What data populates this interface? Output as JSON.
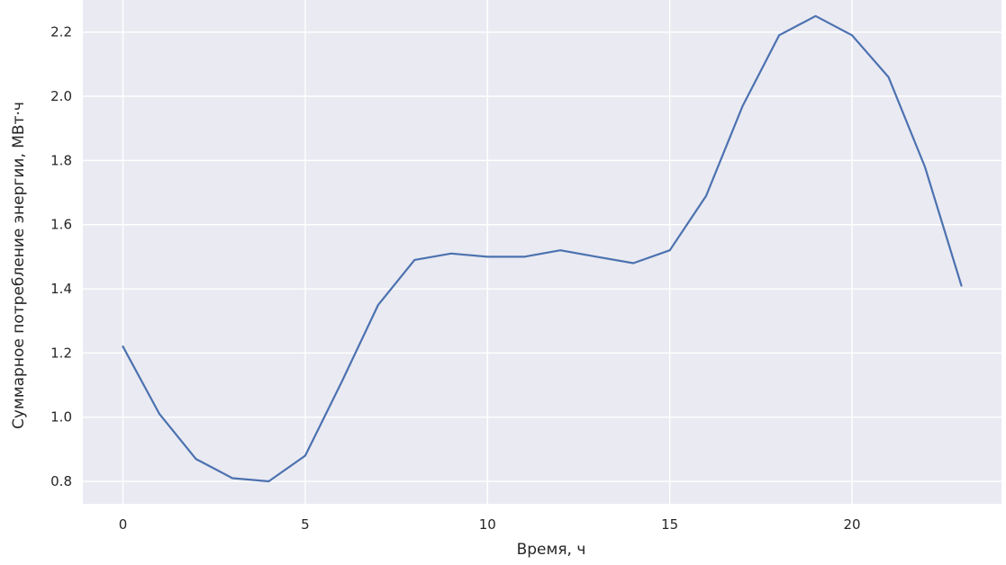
{
  "chart_data": {
    "type": "line",
    "xlabel": "Время, ч",
    "ylabel": "Суммарное потребление энергии, МВт·ч",
    "xlim": [
      -1.1,
      24.1
    ],
    "ylim": [
      0.73,
      2.3
    ],
    "xticks": [
      0,
      5,
      10,
      15,
      20
    ],
    "xtick_labels": [
      "0",
      "5",
      "10",
      "15",
      "20"
    ],
    "yticks": [
      0.8,
      1.0,
      1.2,
      1.4,
      1.6,
      1.8,
      2.0,
      2.2
    ],
    "ytick_labels": [
      "0.8",
      "1.0",
      "1.2",
      "1.4",
      "1.6",
      "1.8",
      "2.0",
      "2.2"
    ],
    "grid": true,
    "series": [
      {
        "color": "#4c72b0",
        "x": [
          0,
          1,
          2,
          3,
          4,
          5,
          6,
          7,
          8,
          9,
          10,
          11,
          12,
          13,
          14,
          15,
          16,
          17,
          18,
          19,
          20,
          21,
          22,
          23
        ],
        "y": [
          1.22,
          1.01,
          0.87,
          0.81,
          0.8,
          0.88,
          1.11,
          1.35,
          1.49,
          1.51,
          1.5,
          1.5,
          1.52,
          1.5,
          1.48,
          1.52,
          1.69,
          1.97,
          2.19,
          2.25,
          2.19,
          2.06,
          1.78,
          1.41
        ]
      }
    ]
  },
  "colors": {
    "plot_background": "#eaeaf2",
    "grid": "#ffffff",
    "line": "#4c72b0"
  }
}
